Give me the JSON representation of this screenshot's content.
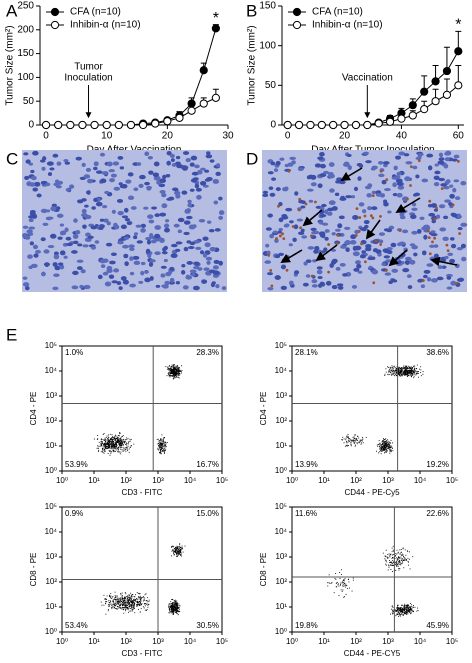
{
  "panel_labels": [
    "A",
    "B",
    "C",
    "D",
    "E"
  ],
  "chart_data": [
    {
      "type": "line",
      "xlabel": "Day After Vaccination",
      "ylabel": "Tumor Size (mm²)",
      "x": [
        0,
        2,
        4,
        6,
        8,
        10,
        12,
        14,
        16,
        18,
        20,
        22,
        24,
        26,
        28
      ],
      "xlim": [
        -1,
        30
      ],
      "xticks": [
        0,
        10,
        20,
        30
      ],
      "ylim": [
        0,
        250
      ],
      "yticks": [
        0,
        50,
        100,
        150,
        200,
        250
      ],
      "series": [
        {
          "name": "CFA (n=10)",
          "color": "#000000",
          "fill": "#000000",
          "values": [
            0,
            0,
            0,
            0,
            0,
            0,
            0,
            0,
            3,
            5,
            10,
            20,
            45,
            115,
            203
          ],
          "errors": [
            null,
            null,
            null,
            null,
            null,
            null,
            null,
            null,
            null,
            null,
            4,
            8,
            12,
            15,
            8
          ]
        },
        {
          "name": "Inhibin-α (n=10)",
          "color": "#000000",
          "fill": "#ffffff",
          "values": [
            0,
            0,
            0,
            0,
            0,
            0,
            0,
            0,
            0,
            3,
            8,
            15,
            30,
            45,
            57
          ],
          "errors": [
            null,
            null,
            null,
            null,
            null,
            null,
            null,
            null,
            null,
            null,
            3,
            6,
            10,
            12,
            18
          ]
        }
      ],
      "annotations": [
        {
          "lines": [
            "Tumor",
            "Inoculation"
          ],
          "x": 7
        },
        {
          "lines": [
            "*"
          ],
          "x": 28
        }
      ]
    },
    {
      "type": "line",
      "xlabel": "Day After Tumor Inoculation",
      "ylabel": "Tumor Size (mm²)",
      "x": [
        0,
        4,
        8,
        12,
        16,
        20,
        24,
        28,
        32,
        36,
        40,
        44,
        48,
        52,
        56,
        60
      ],
      "xlim": [
        -2,
        62
      ],
      "xticks": [
        0,
        20,
        40,
        60
      ],
      "ylim": [
        0,
        150
      ],
      "yticks": [
        0,
        50,
        100,
        150
      ],
      "series": [
        {
          "name": "CFA (n=10)",
          "color": "#000000",
          "fill": "#000000",
          "values": [
            0,
            0,
            0,
            0,
            0,
            0,
            0,
            0,
            3,
            8,
            15,
            25,
            42,
            55,
            68,
            93
          ],
          "errors": [
            null,
            null,
            null,
            null,
            null,
            null,
            null,
            null,
            null,
            4,
            6,
            8,
            20,
            20,
            30,
            25
          ]
        },
        {
          "name": "Inhibin-α (n=10)",
          "color": "#000000",
          "fill": "#ffffff",
          "values": [
            0,
            0,
            0,
            0,
            0,
            0,
            0,
            0,
            2,
            4,
            8,
            12,
            20,
            30,
            38,
            50
          ],
          "errors": [
            null,
            null,
            null,
            null,
            null,
            null,
            null,
            null,
            null,
            null,
            4,
            6,
            10,
            15,
            20,
            25
          ]
        }
      ],
      "annotations": [
        {
          "lines": [
            "Vaccination"
          ],
          "x": 28
        },
        {
          "lines": [
            "*"
          ],
          "x": 60
        }
      ]
    }
  ],
  "flow_cytometry": {
    "tick_labels": [
      "10⁰",
      "10¹",
      "10²",
      "10³",
      "10⁴",
      "10⁵"
    ],
    "plots": [
      {
        "ylabel": "CD4 - PE",
        "xlabel": "CD3 - FITC",
        "quadrants": [
          "1.0%",
          "28.3%",
          "53.9%",
          "16.7%"
        ]
      },
      {
        "ylabel": "CD4 - PE",
        "xlabel": "CD44 - PE-Cy5",
        "quadrants": [
          "28.1%",
          "38.6%",
          "13.9%",
          "19.2%"
        ]
      },
      {
        "ylabel": "CD8 - PE",
        "xlabel": "CD3 - FITC",
        "quadrants": [
          "0.9%",
          "15.0%",
          "53.4%",
          "30.5%"
        ]
      },
      {
        "ylabel": "CD8 - PE",
        "xlabel": "CD44 - PE-CY5",
        "quadrants": [
          "11.6%",
          "22.6%",
          "19.8%",
          "45.9%"
        ]
      }
    ]
  }
}
